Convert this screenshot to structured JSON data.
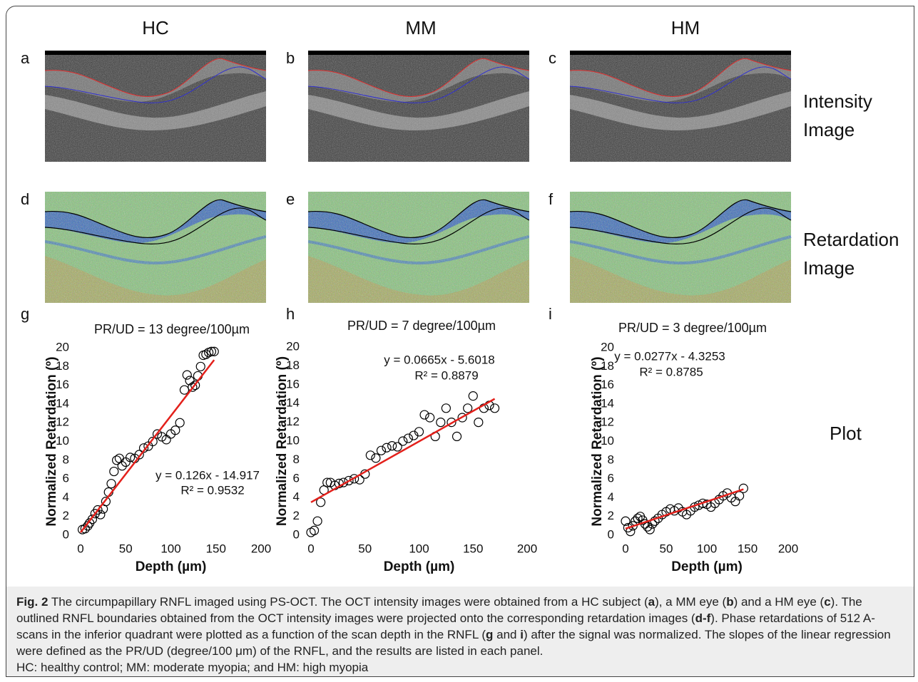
{
  "columns": [
    "HC",
    "MM",
    "HM"
  ],
  "panel_letters": [
    "a",
    "b",
    "c",
    "d",
    "e",
    "f",
    "g",
    "h",
    "i"
  ],
  "row_labels": {
    "intensity": [
      "Intensity",
      "Image"
    ],
    "retardation": [
      "Retardation",
      "Image"
    ],
    "plot": "Plot"
  },
  "chart_data": [
    {
      "type": "scatter",
      "title": "PR/UD = 13 degree/100µm",
      "xlabel": "Depth (µm)",
      "ylabel": "Normalized Retardation (º)",
      "xlim": [
        0,
        200
      ],
      "xticks": [
        0,
        50,
        100,
        150,
        200
      ],
      "ylim": [
        0,
        20
      ],
      "yticks": [
        0,
        2,
        4,
        6,
        8,
        10,
        12,
        14,
        16,
        18,
        20
      ],
      "annotations": [
        "y = 0.126x - 14.917",
        "R² = 0.9532"
      ],
      "marker_color": "#000000",
      "x": [
        2,
        5,
        8,
        10,
        13,
        16,
        19,
        22,
        25,
        28,
        31,
        34,
        37,
        40,
        43,
        46,
        50,
        55,
        60,
        65,
        70,
        75,
        80,
        85,
        90,
        95,
        100,
        105,
        110,
        115,
        118,
        121,
        124,
        127,
        130,
        133,
        136,
        139,
        142,
        145,
        148
      ],
      "values": [
        0.6,
        0.7,
        1.0,
        1.3,
        1.7,
        2.3,
        2.7,
        2.2,
        2.8,
        3.6,
        4.6,
        5.5,
        6.8,
        8.0,
        8.2,
        7.4,
        7.8,
        8.3,
        8.2,
        8.6,
        9.3,
        9.5,
        10.0,
        10.8,
        10.5,
        10.2,
        10.8,
        11.2,
        12.0,
        15.5,
        17.1,
        16.5,
        15.8,
        16.0,
        17.0,
        18.0,
        19.2,
        19.3,
        19.5,
        19.6,
        19.6
      ],
      "fit": {
        "x": [
          0,
          148
        ],
        "values": [
          0.3,
          18.7
        ],
        "color": "#e3201b"
      }
    },
    {
      "type": "scatter",
      "title": "PR/UD = 7 degree/100µm",
      "xlabel": "Depth (µm)",
      "ylabel": "Normalized Retardation (º)",
      "xlim": [
        0,
        200
      ],
      "xticks": [
        0,
        50,
        100,
        150,
        200
      ],
      "ylim": [
        0,
        20
      ],
      "yticks": [
        0,
        2,
        4,
        6,
        8,
        10,
        12,
        14,
        16,
        18,
        20
      ],
      "annotations": [
        "y = 0.0665x - 5.6018",
        "R² = 0.8879"
      ],
      "marker_color": "#000000",
      "x": [
        0,
        3,
        6,
        9,
        12,
        15,
        18,
        22,
        26,
        30,
        35,
        40,
        45,
        50,
        55,
        60,
        65,
        70,
        75,
        80,
        85,
        90,
        95,
        100,
        105,
        110,
        115,
        120,
        125,
        130,
        135,
        140,
        145,
        150,
        155,
        160,
        165,
        170
      ],
      "values": [
        0.3,
        0.5,
        1.5,
        3.5,
        4.8,
        5.6,
        5.6,
        5.3,
        5.5,
        5.6,
        5.8,
        6.0,
        5.9,
        6.5,
        8.5,
        8.2,
        9.0,
        9.3,
        9.5,
        9.4,
        10.0,
        10.3,
        10.6,
        11.0,
        12.8,
        12.5,
        10.5,
        12.0,
        13.5,
        12.0,
        10.5,
        12.5,
        13.5,
        14.8,
        12.0,
        13.5,
        13.8,
        13.5
      ],
      "fit": {
        "x": [
          0,
          170
        ],
        "values": [
          3.5,
          14.5
        ],
        "color": "#e3201b"
      }
    },
    {
      "type": "scatter",
      "title": "PR/UD = 3 degree/100µm",
      "xlabel": "Depth (µm)",
      "ylabel": "Normalized Retardation (º)",
      "xlim": [
        0,
        200
      ],
      "xticks": [
        0,
        50,
        100,
        150,
        200
      ],
      "ylim": [
        0,
        20
      ],
      "yticks": [
        0,
        2,
        4,
        6,
        8,
        10,
        12,
        14,
        16,
        18,
        20
      ],
      "annotations": [
        "y = 0.0277x - 4.3253",
        "R² = 0.8785"
      ],
      "marker_color": "#000000",
      "x": [
        0,
        3,
        6,
        9,
        12,
        15,
        18,
        21,
        24,
        27,
        30,
        33,
        36,
        40,
        45,
        50,
        55,
        60,
        65,
        70,
        75,
        80,
        85,
        90,
        95,
        100,
        105,
        110,
        115,
        120,
        125,
        130,
        135,
        140,
        145
      ],
      "values": [
        1.5,
        0.8,
        0.4,
        1.0,
        1.5,
        1.8,
        2.0,
        1.6,
        1.2,
        0.9,
        0.6,
        1.2,
        1.5,
        1.8,
        2.2,
        2.5,
        2.8,
        2.6,
        2.9,
        2.5,
        2.2,
        2.6,
        3.0,
        3.2,
        3.4,
        3.3,
        3.0,
        3.4,
        3.8,
        4.2,
        4.5,
        4.0,
        3.6,
        4.2,
        5.0
      ],
      "fit": {
        "x": [
          0,
          145
        ],
        "values": [
          0.7,
          4.9
        ],
        "color": "#e3201b"
      }
    }
  ],
  "caption": {
    "runs": [
      {
        "text": "Fig. 2",
        "bold": true
      },
      {
        "text": " The circumpapillary RNFL imaged using PS-OCT. The OCT intensity images were obtained from a HC subject (",
        "bold": false
      },
      {
        "text": "a",
        "bold": true
      },
      {
        "text": "), a MM eye (",
        "bold": false
      },
      {
        "text": "b",
        "bold": true
      },
      {
        "text": ") and a HM eye (",
        "bold": false
      },
      {
        "text": "c",
        "bold": true
      },
      {
        "text": "). The outlined RNFL boundaries obtained from the OCT intensity images were projected onto the corresponding retardation images (",
        "bold": false
      },
      {
        "text": "d-f",
        "bold": true
      },
      {
        "text": "). Phase retardations of 512 A-scans in the inferior quadrant were plotted as a function of the scan depth in the RNFL (",
        "bold": false
      },
      {
        "text": "g",
        "bold": true
      },
      {
        "text": " and ",
        "bold": false
      },
      {
        "text": "i",
        "bold": true
      },
      {
        "text": ") after the signal was normalized. The slopes of the linear regression were defined as the PR/UD (degree/100 μm) of the RNFL, and the results are listed in each panel.",
        "bold": false
      }
    ],
    "last_line": "HC: healthy control; MM: moderate myopia; and HM: high myopia"
  }
}
